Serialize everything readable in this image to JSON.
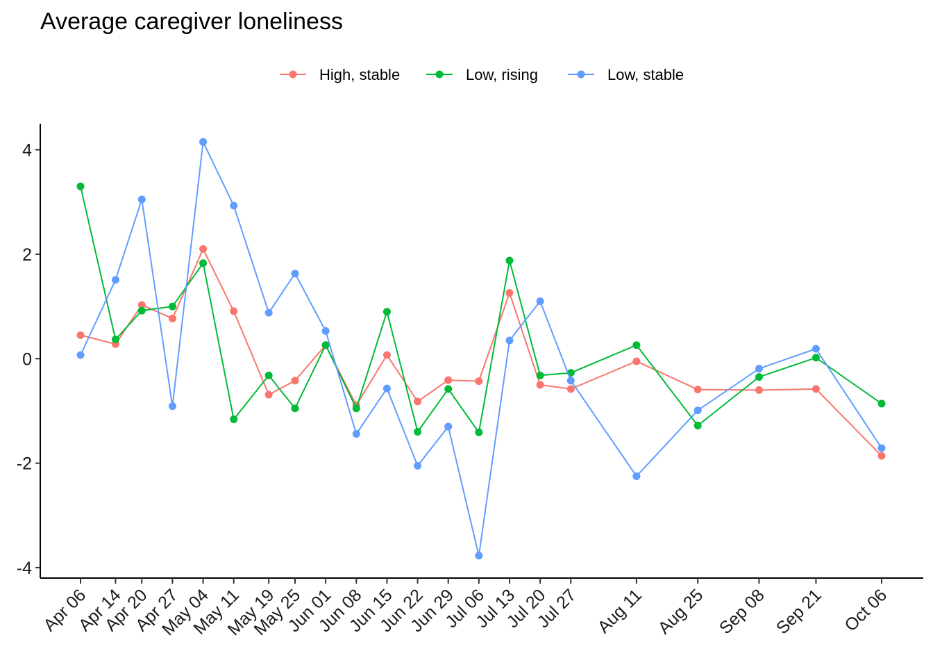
{
  "chart_data": {
    "type": "line",
    "title": "Average caregiver loneliness",
    "xlabel": "",
    "ylabel": "",
    "ylim": [
      -4.2,
      4.5
    ],
    "yticks": [
      -4,
      -2,
      0,
      2,
      4
    ],
    "grid": false,
    "legend_position": "top",
    "x": [
      "2020-04-06",
      "2020-04-14",
      "2020-04-20",
      "2020-04-27",
      "2020-05-04",
      "2020-05-11",
      "2020-05-19",
      "2020-05-25",
      "2020-06-01",
      "2020-06-08",
      "2020-06-15",
      "2020-06-22",
      "2020-06-29",
      "2020-07-06",
      "2020-07-13",
      "2020-07-20",
      "2020-07-27",
      "2020-08-11",
      "2020-08-25",
      "2020-09-08",
      "2020-09-21",
      "2020-10-06"
    ],
    "x_tick_labels": [
      "Apr 06",
      "Apr 14",
      "Apr 20",
      "Apr 27",
      "May 04",
      "May 11",
      "May 19",
      "May 25",
      "Jun 01",
      "Jun 08",
      "Jun 15",
      "Jun 22",
      "Jun 29",
      "Jul 06",
      "Jul 13",
      "Jul 20",
      "Jul 27",
      "Aug 11",
      "Aug 25",
      "Sep 08",
      "Sep 21",
      "Oct 06"
    ],
    "series": [
      {
        "name": "High, stable",
        "color": "#F8766D",
        "values": [
          0.45,
          0.28,
          1.03,
          0.77,
          2.1,
          0.91,
          -0.69,
          -0.42,
          0.26,
          -0.89,
          0.07,
          -0.82,
          -0.41,
          -0.43,
          1.26,
          -0.5,
          -0.58,
          -0.05,
          -0.59,
          -0.6,
          -0.58,
          -1.86
        ]
      },
      {
        "name": "Low, rising",
        "color": "#00BA38",
        "values": [
          3.3,
          0.37,
          0.92,
          1.0,
          1.83,
          -1.16,
          -0.32,
          -0.95,
          0.26,
          -0.95,
          0.9,
          -1.4,
          -0.58,
          -1.41,
          1.88,
          -0.32,
          -0.27,
          0.26,
          -1.28,
          -0.35,
          0.02,
          -0.86
        ]
      },
      {
        "name": "Low, stable",
        "color": "#619CFF",
        "values": [
          0.07,
          1.51,
          3.05,
          -0.91,
          4.15,
          2.93,
          0.88,
          1.63,
          0.53,
          -1.44,
          -0.57,
          -2.05,
          -1.3,
          -3.77,
          0.35,
          1.1,
          -0.42,
          -2.25,
          -0.99,
          -0.19,
          0.19,
          -1.71
        ]
      }
    ]
  }
}
